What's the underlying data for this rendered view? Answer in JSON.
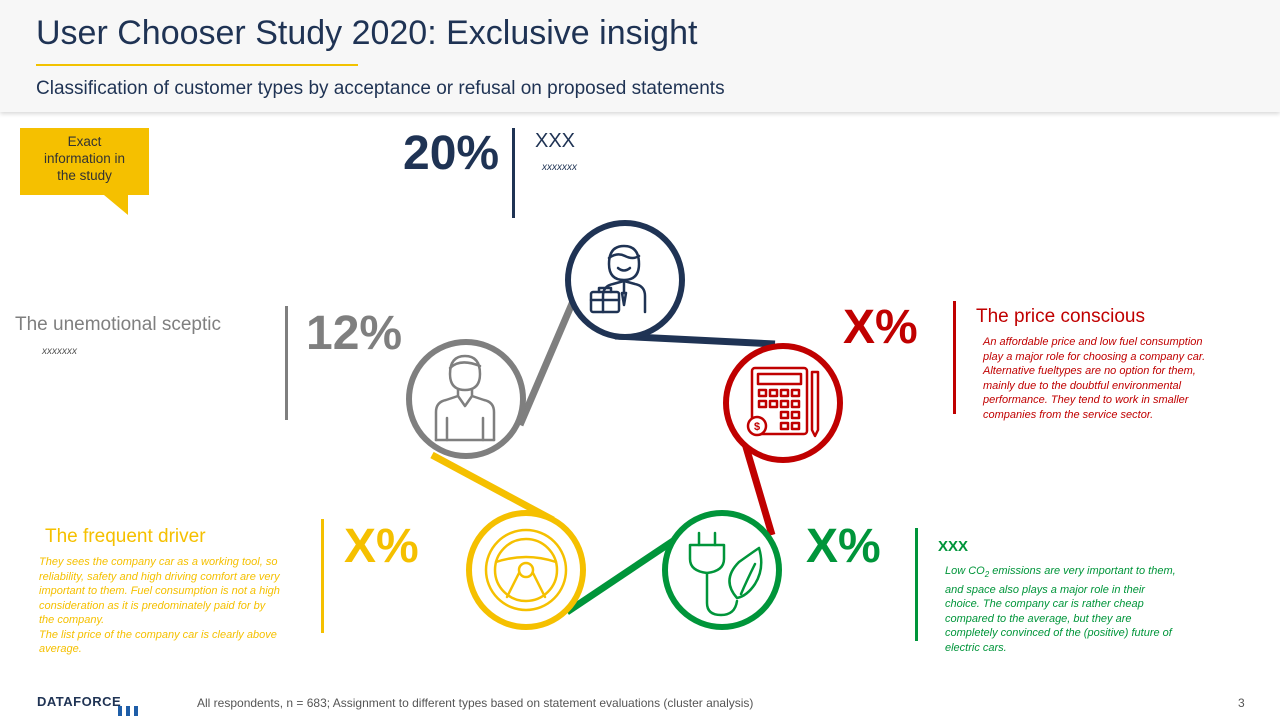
{
  "header": {
    "title": "User Chooser Study 2020: Exclusive insight",
    "subtitle": "Classification of customer types by acceptance or refusal on proposed statements"
  },
  "callout": {
    "line1": "Exact",
    "line2": "information in",
    "line3": "the study"
  },
  "segments": {
    "top": {
      "percent": "20%",
      "name": "XXX",
      "note": "xxxxxxx"
    },
    "sceptic": {
      "percent": "12%",
      "name": "The unemotional sceptic",
      "note": "xxxxxxx"
    },
    "price": {
      "percent": "X%",
      "name": "The price conscious",
      "desc_lines": [
        "An affordable price and low fuel consumption",
        "play a major role for choosing a company car.",
        "Alternative fueltypes are no option for them,",
        "mainly due to the doubtful environmental",
        "performance.  They tend to work in smaller",
        "companies from the service sector."
      ]
    },
    "driver": {
      "percent": "X%",
      "name": "The frequent driver",
      "desc_lines": [
        "They sees the company car as a working tool, so",
        "reliability, safety and high driving comfort are very",
        "important to them. Fuel consumption is not a high",
        "consideration as it is predominately paid for by",
        "the company.",
        "The list price of the company car is clearly above",
        "average."
      ]
    },
    "eco": {
      "percent": "X%",
      "name": "XXX",
      "desc_first_pre": "Low CO",
      "desc_first_sub": "2",
      "desc_first_post": " emissions are very important to them,",
      "desc_lines": [
        "and space also plays a major role in their",
        "choice. The company car is rather cheap",
        "compared to the average, but they are",
        "completely convinced of the (positive) future of",
        "electric cars."
      ]
    }
  },
  "footer": {
    "logo": "DATAFORCE",
    "note": "All respondents,  n = 683; Assignment to different  types based on statement evaluations (cluster analysis)",
    "page": "3"
  },
  "colors": {
    "navy": "#1f3354",
    "red": "#c00000",
    "gray": "#7f7f7f",
    "yellow": "#f5c000",
    "green": "#00953a"
  },
  "icons": [
    "businessman-icon",
    "calculator-icon",
    "plug-leaf-icon",
    "steering-wheel-icon",
    "person-icon"
  ]
}
